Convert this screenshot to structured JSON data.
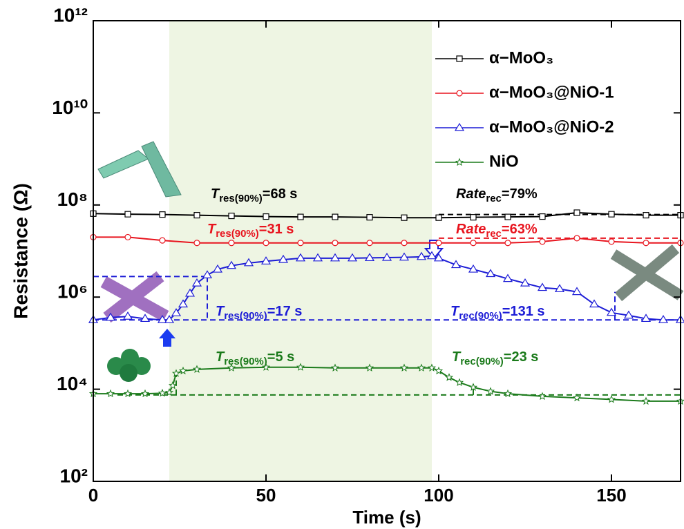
{
  "chart_data": {
    "type": "line",
    "log_y": true,
    "x_label": "Time (s)",
    "y_label": "Resistance (Ω)",
    "xlim": [
      0,
      170
    ],
    "xticks": [
      0,
      50,
      100,
      150
    ],
    "ylim": [
      100,
      1000000000000
    ],
    "yticks": [
      {
        "value": 100,
        "label": "10²"
      },
      {
        "value": 10000,
        "label": "10⁴"
      },
      {
        "value": 1000000,
        "label": "10⁶"
      },
      {
        "value": 100000000,
        "label": "10⁸"
      },
      {
        "value": 10000000000,
        "label": "10¹⁰"
      },
      {
        "value": 1000000000000,
        "label": "10¹²"
      }
    ],
    "shaded_region": [
      22,
      98
    ],
    "shade_color": "#eef5e3",
    "legend": "upper right",
    "series": [
      {
        "name": "α−MoO₃",
        "color": "#000000",
        "marker": "square",
        "x": [
          0,
          10,
          20,
          30,
          40,
          50,
          60,
          70,
          80,
          90,
          100,
          110,
          120,
          130,
          140,
          150,
          160,
          170
        ],
        "values": [
          65000000,
          63000000,
          62000000,
          60000000,
          58000000,
          56000000,
          55000000,
          55000000,
          54000000,
          53000000,
          53000000,
          54000000,
          55000000,
          56000000,
          68000000,
          63000000,
          60000000,
          60000000
        ]
      },
      {
        "name": "α−MoO₃@NiO-1",
        "color": "#e8141e",
        "marker": "circle",
        "x": [
          0,
          10,
          20,
          30,
          40,
          50,
          60,
          70,
          80,
          90,
          100,
          110,
          120,
          130,
          140,
          150,
          160,
          170
        ],
        "values": [
          20000000,
          20000000,
          17000000,
          15000000,
          15000000,
          15000000,
          15000000,
          15000000,
          15000000,
          15000000,
          15000000,
          15000000,
          15000000,
          16000000,
          19000000,
          16000000,
          15000000,
          15000000
        ]
      },
      {
        "name": "α−MoO₃@NiO-2",
        "color": "#1c1cd6",
        "marker": "triangle",
        "x": [
          0,
          5,
          10,
          15,
          20,
          22,
          24,
          26,
          28,
          30,
          33,
          36,
          40,
          45,
          50,
          55,
          60,
          65,
          70,
          75,
          80,
          85,
          90,
          95,
          98,
          100,
          105,
          110,
          115,
          120,
          125,
          130,
          135,
          140,
          145,
          150,
          155,
          160,
          165,
          170
        ],
        "values": [
          320000,
          360000,
          380000,
          340000,
          320000,
          320000,
          450000,
          700000,
          1200000,
          2000000,
          3000000,
          4000000,
          4800000,
          5500000,
          6000000,
          6500000,
          7000000,
          7000000,
          7000000,
          7000000,
          7100000,
          7200000,
          7300000,
          7500000,
          7800000,
          7000000,
          5000000,
          4000000,
          3200000,
          2500000,
          2000000,
          1600000,
          1500000,
          1300000,
          700000,
          460000,
          400000,
          340000,
          320000,
          320000
        ]
      },
      {
        "name": "NiO",
        "color": "#1a7a1a",
        "marker": "star",
        "x": [
          0,
          5,
          10,
          15,
          20,
          22,
          23,
          24,
          26,
          30,
          40,
          50,
          60,
          70,
          80,
          90,
          95,
          98,
          100,
          103,
          106,
          110,
          115,
          120,
          130,
          140,
          150,
          160,
          170
        ],
        "values": [
          8000,
          8000,
          8000,
          8000,
          8200,
          8500,
          12000,
          22000,
          25000,
          27000,
          29000,
          30000,
          30000,
          29000,
          29000,
          29000,
          29000,
          29000,
          25000,
          18000,
          14000,
          11000,
          9000,
          8000,
          7000,
          6500,
          6000,
          5500,
          5500
        ]
      }
    ],
    "guide_lines": [
      {
        "color": "#000000",
        "x": [
          100,
          170
        ],
        "y": [
          62000000,
          62000000
        ]
      },
      {
        "color": "#e8141e",
        "x": [
          100,
          170
        ],
        "y": [
          19000000,
          19000000
        ]
      },
      {
        "color": "#1c1cd6",
        "x": [
          0,
          33
        ],
        "y": [
          2800000,
          2800000
        ]
      },
      {
        "color": "#1c1cd6",
        "x": [
          33,
          33
        ],
        "y": [
          2800000,
          320000
        ]
      },
      {
        "color": "#1c1cd6",
        "x": [
          0,
          170
        ],
        "y": [
          320000,
          320000
        ]
      },
      {
        "color": "#1c1cd6",
        "x": [
          151,
          151
        ],
        "y": [
          320000,
          1300000
        ]
      },
      {
        "color": "#1a7a1a",
        "x": [
          7,
          170
        ],
        "y": [
          7500,
          7500
        ]
      },
      {
        "color": "#1a7a1a",
        "x": [
          24,
          24
        ],
        "y": [
          7500,
          25000
        ]
      },
      {
        "color": "#1a7a1a",
        "x": [
          110,
          110
        ],
        "y": [
          7500,
          13000
        ]
      }
    ],
    "annotations": [
      {
        "main": "T",
        "sub": "res(90%)",
        "rest": "=68 s",
        "color": "#000000"
      },
      {
        "main": "Rate",
        "sub": "rec",
        "rest": "=79%",
        "color": "#000000"
      },
      {
        "main": "T",
        "sub": "res(90%)",
        "rest": "=31 s",
        "color": "#e8141e"
      },
      {
        "main": "Rate",
        "sub": "rec",
        "rest": "=63%",
        "color": "#e8141e"
      },
      {
        "main": "T",
        "sub": "res(90%)",
        "rest": "=17 s",
        "color": "#1c1cd6"
      },
      {
        "main": "T",
        "sub": "rec(90%)",
        "rest": "=131 s",
        "color": "#1c1cd6"
      },
      {
        "main": "T",
        "sub": "res(90%)",
        "rest": "=5 s",
        "color": "#1a7a1a"
      },
      {
        "main": "T",
        "sub": "rec(90%)",
        "rest": "=23 s",
        "color": "#1a7a1a"
      }
    ]
  }
}
